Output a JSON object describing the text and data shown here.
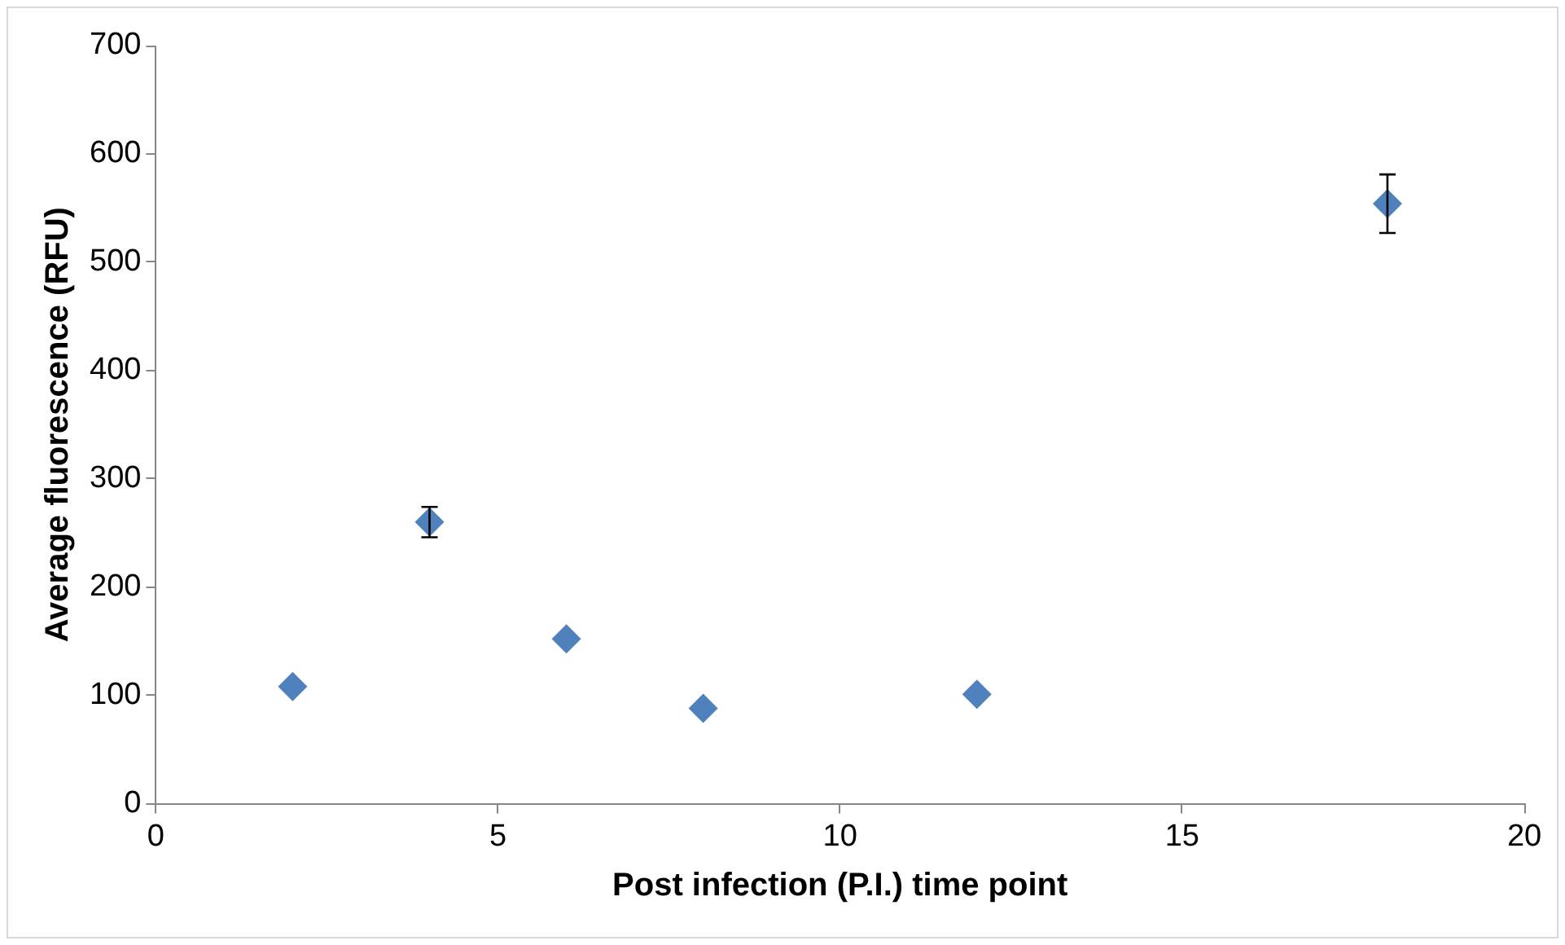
{
  "chart_data": {
    "type": "scatter",
    "xlabel": "Post infection (P.I.) time point",
    "ylabel": "Average fluorescence (RFU)",
    "x": [
      2,
      4,
      6,
      8,
      12,
      18
    ],
    "values": [
      108,
      260,
      152,
      88,
      101,
      554
    ],
    "errors": [
      null,
      14,
      null,
      null,
      null,
      27
    ],
    "color": "#4f81bd",
    "marker": "diamond",
    "xlim": [
      0,
      20
    ],
    "xticks": [
      0,
      5,
      10,
      15,
      20
    ],
    "ylim": [
      0,
      700
    ],
    "yticks": [
      0,
      100,
      200,
      300,
      400,
      500,
      600,
      700
    ],
    "grid": false,
    "legend": false
  }
}
